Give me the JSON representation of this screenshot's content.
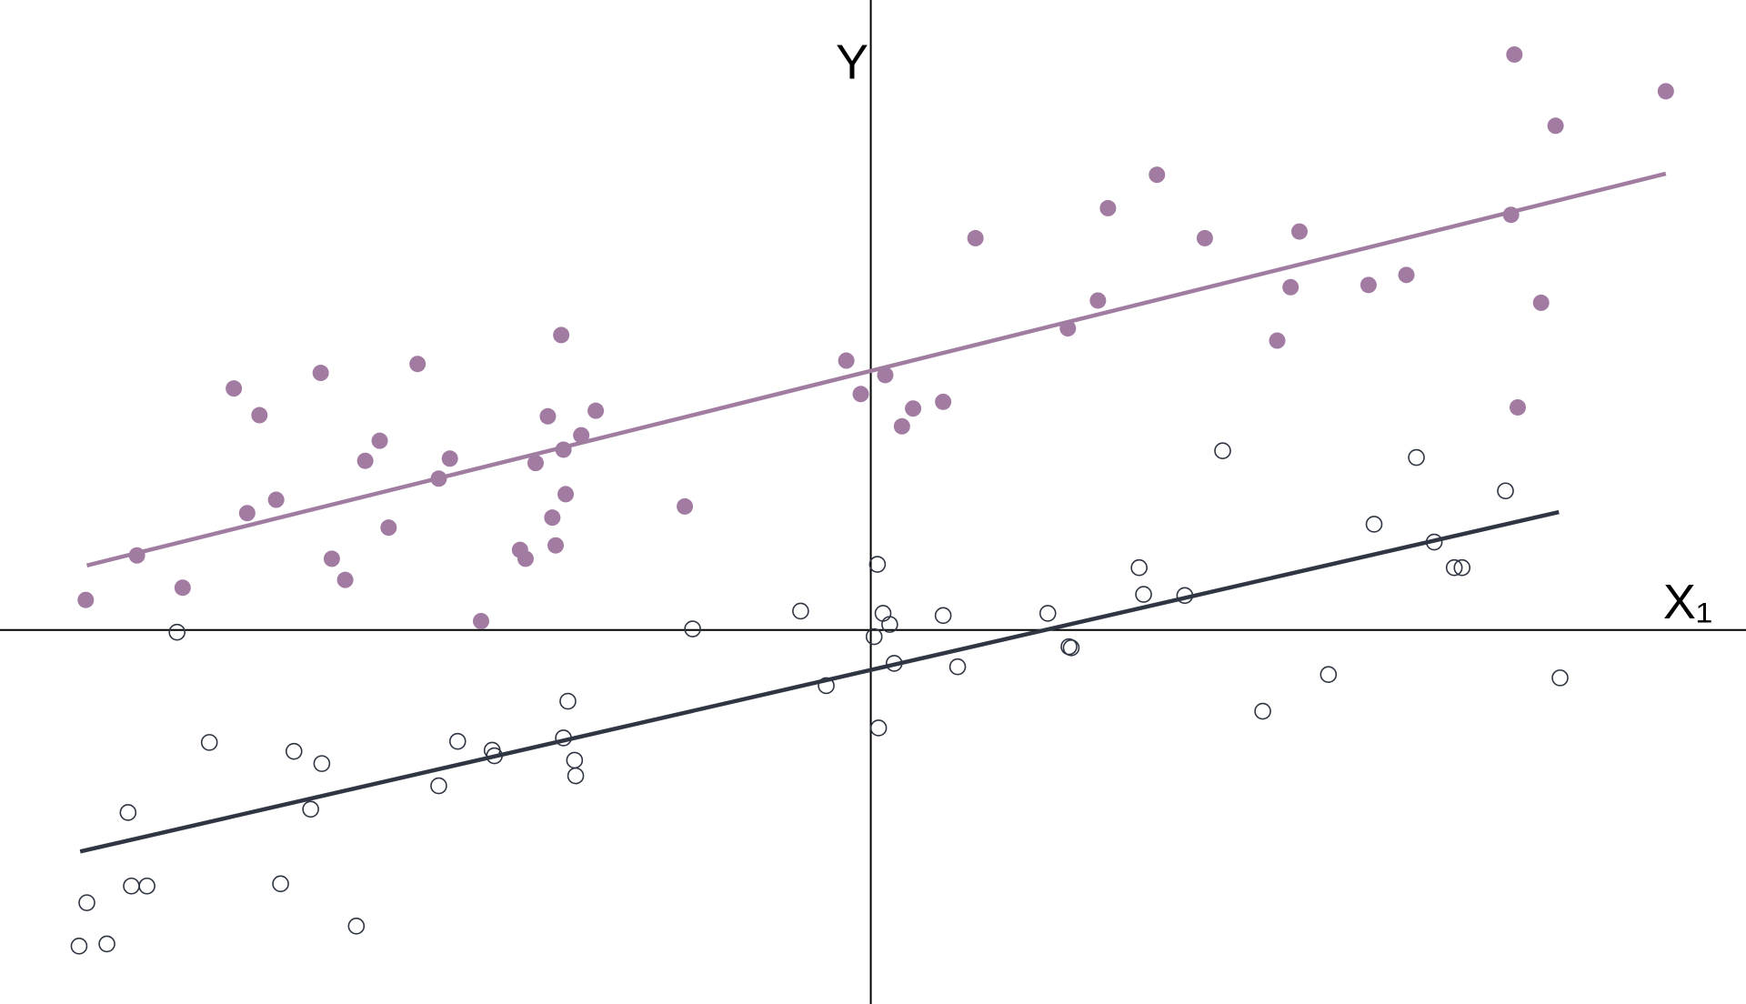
{
  "chart_data": {
    "type": "scatter",
    "x_label": "X₁",
    "y_label": "Y",
    "xlim": [
      -7.82,
      7.86
    ],
    "ylim": [
      -3.36,
      5.66
    ],
    "series": [
      {
        "color": "#a27ba2",
        "marker": "filled",
        "x": [
          -7.05,
          -6.59,
          -6.18,
          -5.72,
          -5.49,
          -5.6,
          -5.34,
          -4.94,
          -4.84,
          -4.72,
          -4.54,
          -4.41,
          -4.33,
          -4.07,
          -3.88,
          -3.78,
          -3.5,
          -3.15,
          -3.1,
          -3.01,
          -2.9,
          -2.86,
          -2.83,
          -2.78,
          -2.76,
          -2.74,
          -2.6,
          -2.47,
          -1.67,
          -0.22,
          -0.09,
          0.13,
          0.28,
          0.38,
          0.65,
          0.94,
          1.77,
          2.04,
          2.13,
          2.57,
          3.0,
          3.65,
          3.77,
          3.85,
          4.47,
          4.81,
          5.75,
          5.78,
          5.81,
          6.02,
          6.15,
          7.14
        ],
        "values": [
          0.27,
          0.67,
          0.38,
          2.17,
          1.93,
          1.05,
          1.17,
          2.31,
          0.64,
          0.45,
          1.52,
          1.7,
          0.92,
          2.39,
          1.36,
          1.54,
          0.08,
          0.72,
          0.64,
          1.5,
          1.92,
          1.01,
          0.76,
          2.65,
          1.62,
          1.22,
          1.75,
          1.97,
          1.11,
          2.42,
          2.12,
          2.29,
          1.83,
          1.99,
          2.05,
          3.52,
          2.71,
          2.96,
          3.79,
          4.09,
          3.52,
          2.6,
          3.08,
          3.58,
          3.1,
          3.19,
          3.73,
          5.17,
          2.0,
          2.94,
          4.53,
          4.84
        ]
      },
      {
        "color": "#2f3542",
        "marker": "open",
        "x": [
          -7.11,
          -7.04,
          -6.86,
          -6.67,
          -6.64,
          -6.5,
          -6.23,
          -5.94,
          -5.3,
          -5.18,
          -5.03,
          -4.93,
          -4.62,
          -3.88,
          -3.71,
          -3.4,
          -3.38,
          -2.76,
          -2.72,
          -2.66,
          -2.65,
          -1.6,
          -0.63,
          -0.4,
          0.03,
          0.06,
          0.07,
          0.11,
          0.17,
          0.21,
          0.65,
          0.78,
          1.59,
          1.78,
          1.8,
          2.41,
          2.45,
          2.82,
          3.16,
          3.52,
          4.11,
          4.52,
          4.9,
          5.06,
          5.24,
          5.31,
          5.7,
          6.19
        ],
        "values": [
          -2.84,
          -2.45,
          -2.82,
          -1.64,
          -2.3,
          -2.3,
          -0.02,
          -1.01,
          -2.28,
          -1.09,
          -1.61,
          -1.2,
          -2.66,
          -1.4,
          -1.0,
          -1.08,
          -1.13,
          -0.97,
          -0.64,
          -1.17,
          -1.31,
          0.01,
          0.17,
          -0.5,
          -0.06,
          0.59,
          -0.88,
          0.15,
          0.05,
          -0.3,
          0.13,
          -0.33,
          0.15,
          -0.15,
          -0.16,
          0.56,
          0.32,
          0.31,
          1.61,
          -0.73,
          -0.4,
          0.95,
          1.55,
          0.79,
          0.56,
          0.56,
          1.25,
          -0.43
        ]
      }
    ],
    "fits": [
      {
        "color": "#a07da0",
        "x": [
          -7.04,
          7.14
        ],
        "values": [
          0.58,
          4.1
        ]
      },
      {
        "color": "#2f3542",
        "x": [
          -7.1,
          6.18
        ],
        "values": [
          -1.99,
          1.06
        ]
      }
    ]
  }
}
